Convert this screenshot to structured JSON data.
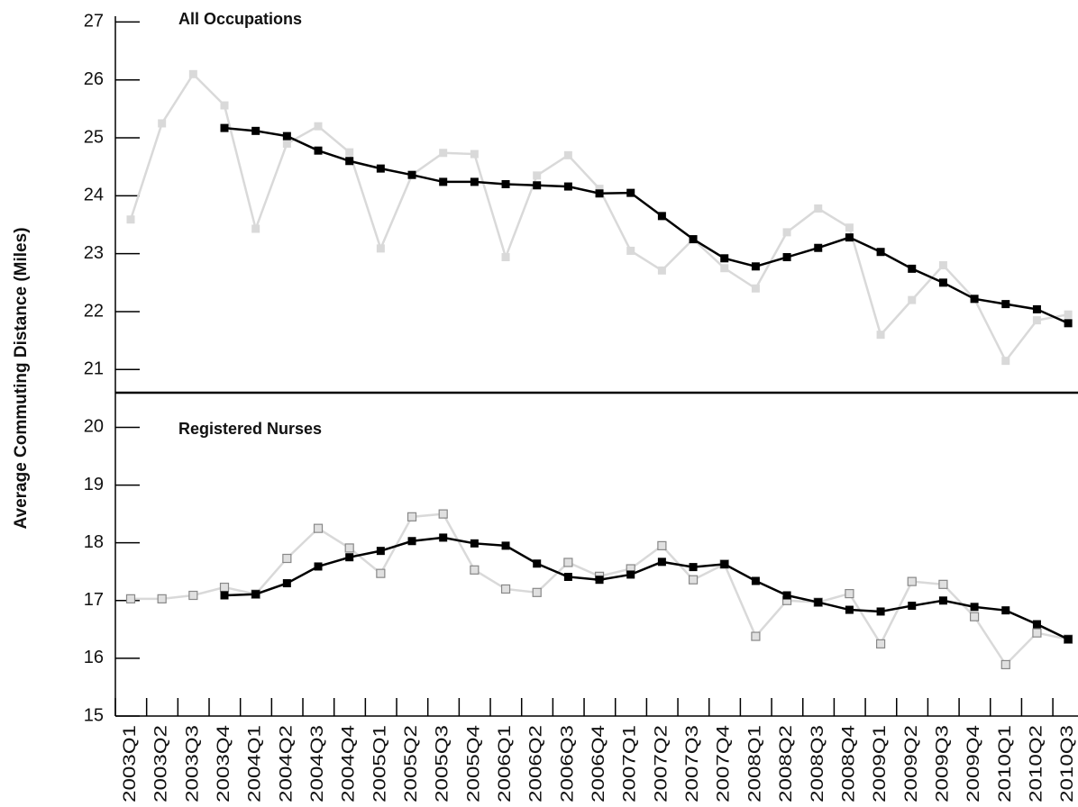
{
  "y_label": "Average Commuting Distance (Miles)",
  "chart_data": [
    {
      "type": "line",
      "title": "All Occupations",
      "ylim": [
        20.6,
        27.1
      ],
      "yticks": [
        21,
        22,
        23,
        24,
        25,
        26,
        27
      ],
      "series": [
        {
          "color": "#d9d9d9",
          "values": [
            23.59,
            25.25,
            26.1,
            25.56,
            23.43,
            24.9,
            25.2,
            24.75,
            23.09,
            24.36,
            24.74,
            24.72,
            22.94,
            24.35,
            24.7,
            24.12,
            23.05,
            22.71,
            23.25,
            22.75,
            22.4,
            23.37,
            23.78,
            23.45,
            21.6,
            22.2,
            22.8,
            22.22,
            21.15,
            21.85,
            21.95
          ]
        },
        {
          "color": "#000000",
          "values": [
            null,
            null,
            null,
            25.17,
            25.12,
            25.03,
            24.78,
            24.6,
            24.47,
            24.36,
            24.24,
            24.24,
            24.2,
            24.18,
            24.16,
            24.04,
            24.05,
            23.65,
            23.25,
            22.92,
            22.78,
            22.94,
            23.1,
            23.28,
            23.03,
            22.74,
            22.5,
            22.22,
            22.13,
            22.04,
            21.8
          ]
        }
      ]
    },
    {
      "type": "line",
      "title": "Registered Nurses",
      "categories": [
        "2003Q1",
        "2003Q2",
        "2003Q3",
        "2003Q4",
        "2004Q1",
        "2004Q2",
        "2004Q3",
        "2004Q4",
        "2005Q1",
        "2005Q2",
        "2005Q3",
        "2005Q4",
        "2006Q1",
        "2006Q2",
        "2006Q3",
        "2006Q4",
        "2007Q1",
        "2007Q2",
        "2007Q3",
        "2007Q4",
        "2008Q1",
        "2008Q2",
        "2008Q3",
        "2008Q4",
        "2009Q1",
        "2009Q2",
        "2009Q3",
        "2009Q4",
        "2010Q1",
        "2010Q2",
        "2010Q3"
      ],
      "ylim": [
        15,
        20.6
      ],
      "yticks": [
        15,
        16,
        17,
        18,
        19,
        20
      ],
      "series": [
        {
          "color": "#d9d9d9",
          "marker_edge": "#888888",
          "values": [
            17.03,
            17.03,
            17.09,
            17.23,
            17.11,
            17.73,
            18.25,
            17.91,
            17.47,
            18.45,
            18.5,
            17.53,
            17.2,
            17.14,
            17.66,
            17.42,
            17.55,
            17.95,
            17.36,
            17.63,
            16.38,
            17.0,
            16.97,
            17.12,
            16.25,
            17.33,
            17.28,
            16.72,
            15.89,
            16.44,
            16.33
          ]
        },
        {
          "color": "#000000",
          "values": [
            null,
            null,
            null,
            17.09,
            17.11,
            17.3,
            17.59,
            17.75,
            17.86,
            18.03,
            18.09,
            17.99,
            17.95,
            17.64,
            17.41,
            17.36,
            17.45,
            17.67,
            17.58,
            17.63,
            17.34,
            17.09,
            16.97,
            16.84,
            16.81,
            16.91,
            17.0,
            16.89,
            16.83,
            16.59,
            16.33
          ]
        }
      ]
    }
  ]
}
